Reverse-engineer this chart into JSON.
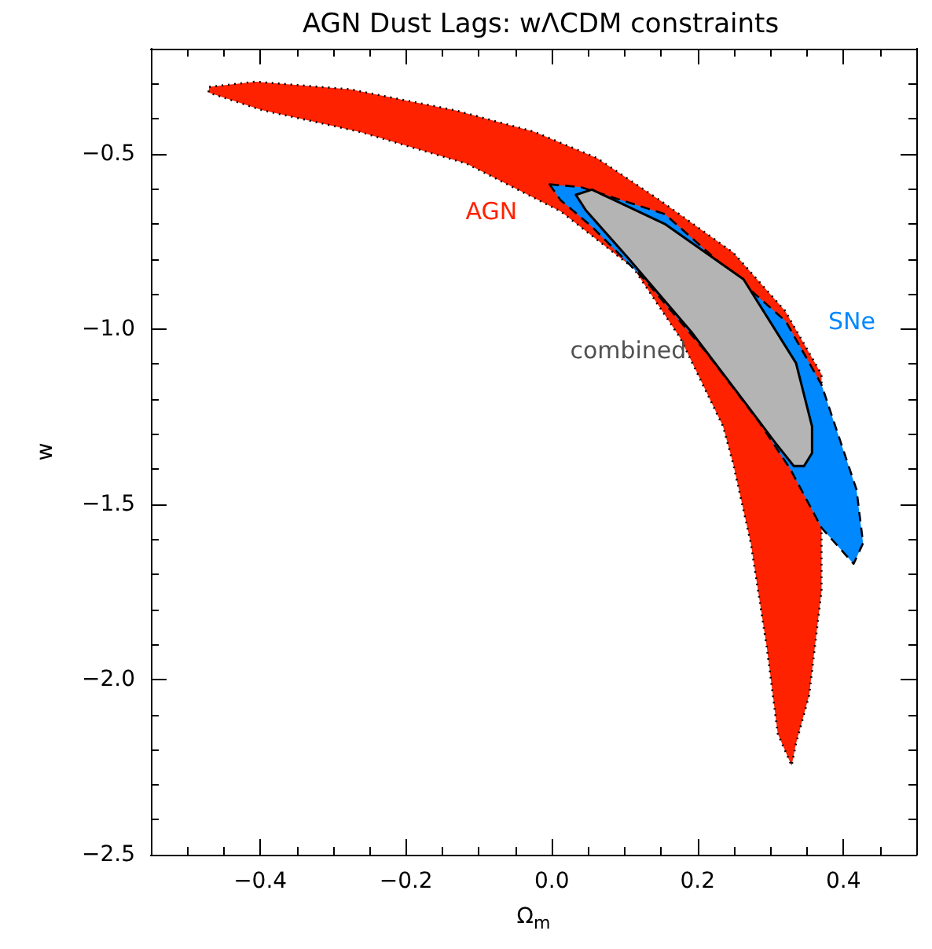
{
  "chart_data": {
    "type": "area",
    "title": "AGN Dust Lags: wΛCDM constraints",
    "xlabel": "Ω$_{m}$",
    "ylabel": "w",
    "xlim": [
      -0.55,
      0.5
    ],
    "ylim": [
      -2.5,
      -0.2
    ],
    "xticks": [
      {
        "value": -0.55,
        "label": null
      },
      {
        "value": -0.5,
        "label": null
      },
      {
        "value": -0.45,
        "label": null
      },
      {
        "value": -0.4,
        "label": "−0.4"
      },
      {
        "value": -0.35,
        "label": null
      },
      {
        "value": -0.3,
        "label": null
      },
      {
        "value": -0.25,
        "label": null
      },
      {
        "value": -0.2,
        "label": "−0.2"
      },
      {
        "value": -0.15,
        "label": null
      },
      {
        "value": -0.1,
        "label": null
      },
      {
        "value": -0.05,
        "label": null
      },
      {
        "value": 0,
        "label": "0.0"
      },
      {
        "value": 0.05,
        "label": null
      },
      {
        "value": 0.1,
        "label": null
      },
      {
        "value": 0.15,
        "label": null
      },
      {
        "value": 0.2,
        "label": "0.2"
      },
      {
        "value": 0.25,
        "label": null
      },
      {
        "value": 0.3,
        "label": null
      },
      {
        "value": 0.35,
        "label": null
      },
      {
        "value": 0.4,
        "label": "0.4"
      },
      {
        "value": 0.45,
        "label": null
      }
    ],
    "yticks": [
      {
        "value": -2.5,
        "label": "−2.5"
      },
      {
        "value": -2.4,
        "label": null
      },
      {
        "value": -2.3,
        "label": null
      },
      {
        "value": -2.2,
        "label": null
      },
      {
        "value": -2.1,
        "label": null
      },
      {
        "value": -2.0,
        "label": "−2.0"
      },
      {
        "value": -1.9,
        "label": null
      },
      {
        "value": -1.8,
        "label": null
      },
      {
        "value": -1.7,
        "label": null
      },
      {
        "value": -1.6,
        "label": null
      },
      {
        "value": -1.5,
        "label": "−1.5"
      },
      {
        "value": -1.4,
        "label": null
      },
      {
        "value": -1.3,
        "label": null
      },
      {
        "value": -1.2,
        "label": null
      },
      {
        "value": -1.1,
        "label": null
      },
      {
        "value": -1.0,
        "label": "−1.0"
      },
      {
        "value": -0.9,
        "label": null
      },
      {
        "value": -0.8,
        "label": null
      },
      {
        "value": -0.7,
        "label": null
      },
      {
        "value": -0.6,
        "label": null
      },
      {
        "value": -0.5,
        "label": "−0.5"
      },
      {
        "value": -0.4,
        "label": null
      },
      {
        "value": -0.3,
        "label": null
      }
    ],
    "grid": false,
    "series": [
      {
        "name": "AGN",
        "color": "#ff2200",
        "line_style": "dotted",
        "x": [
          -0.47,
          -0.406,
          -0.276,
          -0.132,
          -0.024,
          0.062,
          0.148,
          0.249,
          0.32,
          0.37,
          0.37,
          0.37,
          0.353,
          0.335,
          0.329,
          0.31,
          0.295,
          0.273,
          0.249,
          0.235,
          0.176,
          0.112,
          0.012,
          -0.117,
          -0.262,
          -0.398,
          -0.471
        ],
        "values": [
          -0.309,
          -0.294,
          -0.316,
          -0.376,
          -0.437,
          -0.512,
          -0.632,
          -0.782,
          -0.948,
          -1.129,
          -1.567,
          -1.747,
          -2.045,
          -2.183,
          -2.246,
          -2.155,
          -1.909,
          -1.611,
          -1.386,
          -1.278,
          -1.025,
          -0.826,
          -0.664,
          -0.528,
          -0.438,
          -0.375,
          -0.325
        ]
      },
      {
        "name": "SNe",
        "color": "#0088ff",
        "line_style": "dashed",
        "x": [
          -0.003,
          0.04,
          0.155,
          0.263,
          0.321,
          0.37,
          0.418,
          0.427,
          0.414,
          0.37,
          0.327,
          0.284,
          0.213,
          0.127,
          0.055,
          0.012
        ],
        "values": [
          -0.587,
          -0.595,
          -0.672,
          -0.871,
          -0.978,
          -1.159,
          -1.458,
          -1.611,
          -1.67,
          -1.567,
          -1.399,
          -1.264,
          -1.069,
          -0.858,
          -0.708,
          -0.632
        ]
      },
      {
        "name": "combined",
        "color": "#b4b4b4",
        "line_style": "solid",
        "x": [
          0.033,
          0.055,
          0.155,
          0.263,
          0.335,
          0.357,
          0.357,
          0.346,
          0.332,
          0.306,
          0.263,
          0.191,
          0.105,
          0.047
        ],
        "values": [
          -0.617,
          -0.602,
          -0.7,
          -0.858,
          -1.097,
          -1.278,
          -1.354,
          -1.391,
          -1.391,
          -1.323,
          -1.204,
          -1.007,
          -0.798,
          -0.662
        ]
      }
    ]
  }
}
